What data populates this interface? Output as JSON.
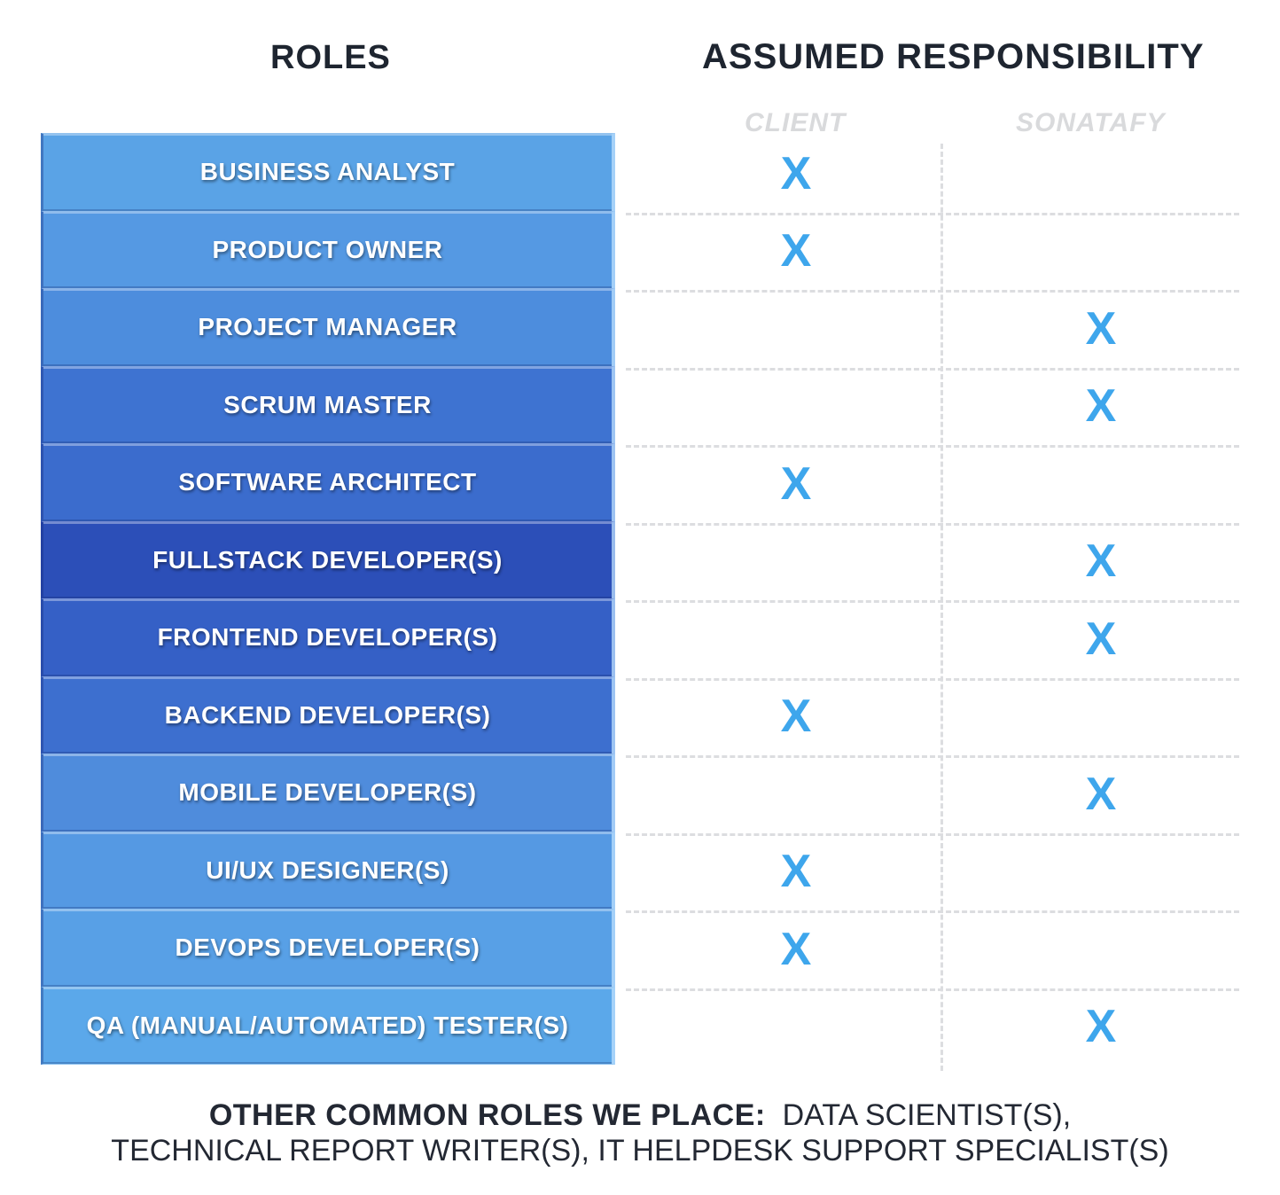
{
  "headings": {
    "roles": "ROLES",
    "responsibility": "ASSUMED RESPONSIBILITY",
    "client": "CLIENT",
    "sonatafy": "SONATAFY"
  },
  "roles": [
    {
      "label": "BUSINESS ANALYST",
      "client": "X",
      "sonatafy": ""
    },
    {
      "label": "PRODUCT OWNER",
      "client": "X",
      "sonatafy": ""
    },
    {
      "label": "PROJECT MANAGER",
      "client": "",
      "sonatafy": "X"
    },
    {
      "label": "SCRUM MASTER",
      "client": "",
      "sonatafy": "X"
    },
    {
      "label": "SOFTWARE ARCHITECT",
      "client": "X",
      "sonatafy": ""
    },
    {
      "label": "FULLSTACK DEVELOPER(S)",
      "client": "",
      "sonatafy": "X"
    },
    {
      "label": "FRONTEND DEVELOPER(S)",
      "client": "",
      "sonatafy": "X"
    },
    {
      "label": "BACKEND DEVELOPER(S)",
      "client": "X",
      "sonatafy": ""
    },
    {
      "label": "MOBILE DEVELOPER(S)",
      "client": "",
      "sonatafy": "X"
    },
    {
      "label": "UI/UX DESIGNER(S)",
      "client": "X",
      "sonatafy": ""
    },
    {
      "label": "DEVOPS DEVELOPER(S)",
      "client": "X",
      "sonatafy": ""
    },
    {
      "label": "QA (MANUAL/AUTOMATED) TESTER(S)",
      "client": "",
      "sonatafy": "X"
    }
  ],
  "footer": {
    "bold": "OTHER COMMON ROLES WE PLACE:",
    "line1_rest": "DATA SCIENTIST(S),",
    "line2": "TECHNICAL REPORT WRITER(S), IT HELPDESK SUPPORT SPECIALIST(S)"
  },
  "colors": {
    "role_fills": [
      "#5aa3e6",
      "#5599e3",
      "#4d8ddd",
      "#3e73d1",
      "#3b6ccd",
      "#2c4fb8",
      "#3560c6",
      "#3d6fcf",
      "#4f8cdc",
      "#5599e3",
      "#58a0e6",
      "#5ba8ea"
    ],
    "mark": "#3ea6ec",
    "heading": "#1e2530",
    "column_header": "#d9dadc"
  }
}
